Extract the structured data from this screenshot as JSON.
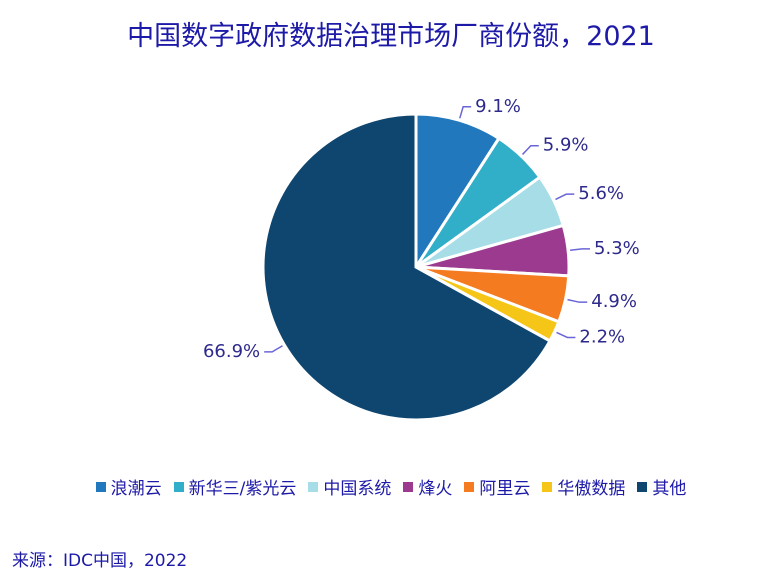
{
  "chart_data": {
    "type": "pie",
    "title": "中国数字政府数据治理市场厂商份额，2021",
    "categories": [
      "浪潮云",
      "新华三/紫光云",
      "中国系统",
      "烽火",
      "阿里云",
      "华傲数据",
      "其他"
    ],
    "values": [
      9.1,
      5.9,
      5.6,
      5.3,
      4.9,
      2.2,
      66.9
    ],
    "value_labels": [
      "9.1%",
      "5.9%",
      "5.6%",
      "5.3%",
      "4.9%",
      "2.2%",
      "66.9%"
    ],
    "colors": [
      "#2178bd",
      "#31aec8",
      "#a6dde6",
      "#9b3a8e",
      "#f47b20",
      "#f5c518",
      "#0e4670"
    ],
    "legend": "bottom",
    "source": "来源：IDC中国，2022"
  }
}
